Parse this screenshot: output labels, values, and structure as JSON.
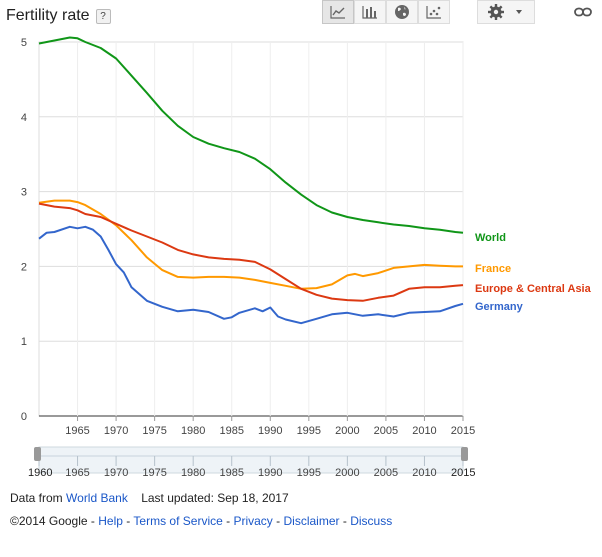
{
  "header": {
    "title": "Fertility rate",
    "help_label": "?"
  },
  "toolbar": {
    "icons": [
      "line-chart-icon",
      "bar-chart-icon",
      "globe-icon",
      "scatter-chart-icon",
      "gear-icon",
      "link-icon"
    ]
  },
  "chart_data": {
    "type": "line",
    "ylim": [
      0,
      5
    ],
    "xlim": [
      1960,
      2015
    ],
    "yticks": [
      "0",
      "1",
      "2",
      "3",
      "4",
      "5"
    ],
    "xticks": [
      "1965",
      "1970",
      "1975",
      "1980",
      "1985",
      "1990",
      "1995",
      "2000",
      "2005",
      "2010",
      "2015"
    ],
    "grid": true,
    "legend": "right",
    "series": [
      {
        "name": "World",
        "color": "#109618",
        "x": [
          1960,
          1962,
          1964,
          1965,
          1966,
          1968,
          1970,
          1972,
          1974,
          1976,
          1978,
          1980,
          1982,
          1984,
          1986,
          1988,
          1990,
          1992,
          1994,
          1996,
          1998,
          2000,
          2002,
          2004,
          2006,
          2008,
          2010,
          2012,
          2014,
          2015
        ],
        "values": [
          4.98,
          5.02,
          5.06,
          5.05,
          5.0,
          4.92,
          4.78,
          4.55,
          4.32,
          4.08,
          3.88,
          3.73,
          3.64,
          3.58,
          3.53,
          3.44,
          3.3,
          3.12,
          2.96,
          2.82,
          2.72,
          2.66,
          2.62,
          2.59,
          2.56,
          2.54,
          2.51,
          2.49,
          2.46,
          2.45
        ]
      },
      {
        "name": "France",
        "color": "#ff9900",
        "x": [
          1960,
          1962,
          1964,
          1965,
          1966,
          1968,
          1970,
          1972,
          1974,
          1976,
          1978,
          1980,
          1982,
          1984,
          1986,
          1988,
          1990,
          1992,
          1994,
          1996,
          1998,
          2000,
          2001,
          2002,
          2004,
          2006,
          2008,
          2010,
          2012,
          2014,
          2015
        ],
        "values": [
          2.85,
          2.88,
          2.88,
          2.86,
          2.82,
          2.7,
          2.55,
          2.35,
          2.12,
          1.95,
          1.86,
          1.85,
          1.86,
          1.86,
          1.85,
          1.82,
          1.78,
          1.74,
          1.7,
          1.71,
          1.76,
          1.88,
          1.9,
          1.87,
          1.91,
          1.98,
          2.0,
          2.02,
          2.01,
          2.0,
          2.0
        ]
      },
      {
        "name": "Europe & Central Asia",
        "color": "#dc3912",
        "x": [
          1960,
          1962,
          1964,
          1965,
          1966,
          1968,
          1970,
          1972,
          1974,
          1976,
          1978,
          1980,
          1982,
          1984,
          1986,
          1988,
          1990,
          1992,
          1994,
          1996,
          1998,
          2000,
          2002,
          2004,
          2006,
          2008,
          2010,
          2012,
          2014,
          2015
        ],
        "values": [
          2.84,
          2.8,
          2.78,
          2.75,
          2.7,
          2.66,
          2.57,
          2.48,
          2.4,
          2.32,
          2.22,
          2.16,
          2.12,
          2.1,
          2.09,
          2.06,
          1.96,
          1.83,
          1.7,
          1.62,
          1.57,
          1.55,
          1.54,
          1.58,
          1.61,
          1.7,
          1.72,
          1.72,
          1.74,
          1.75
        ]
      },
      {
        "name": "Germany",
        "color": "#3366cc",
        "x": [
          1960,
          1961,
          1962,
          1964,
          1965,
          1966,
          1967,
          1968,
          1969,
          1970,
          1971,
          1972,
          1974,
          1976,
          1978,
          1980,
          1982,
          1984,
          1985,
          1986,
          1988,
          1989,
          1990,
          1991,
          1992,
          1994,
          1996,
          1998,
          2000,
          2002,
          2004,
          2006,
          2008,
          2010,
          2012,
          2014,
          2015
        ],
        "values": [
          2.37,
          2.45,
          2.46,
          2.53,
          2.51,
          2.53,
          2.49,
          2.4,
          2.22,
          2.03,
          1.92,
          1.72,
          1.54,
          1.46,
          1.4,
          1.42,
          1.39,
          1.3,
          1.32,
          1.38,
          1.44,
          1.4,
          1.45,
          1.33,
          1.29,
          1.24,
          1.3,
          1.36,
          1.38,
          1.34,
          1.36,
          1.33,
          1.38,
          1.39,
          1.4,
          1.47,
          1.5
        ]
      }
    ]
  },
  "timeline": {
    "start_label": "1960",
    "end_label": "2015"
  },
  "footer": {
    "data_from_label": "Data from",
    "source_link": "World Bank",
    "last_updated": "Last updated: Sep 18, 2017",
    "copyright": "©2014 Google",
    "sep": "-",
    "links": [
      "Help",
      "Terms of Service",
      "Privacy",
      "Disclaimer",
      "Discuss"
    ]
  }
}
